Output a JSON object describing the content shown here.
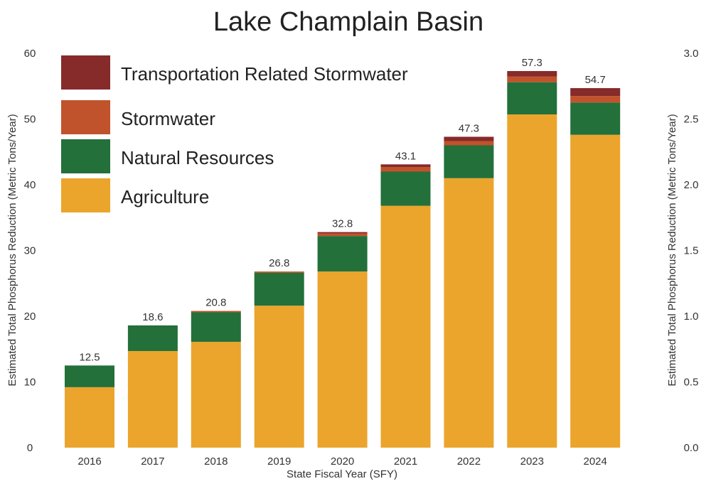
{
  "chart_data": {
    "type": "bar",
    "stacked": true,
    "title": "Lake Champlain Basin",
    "xlabel": "State Fiscal Year (SFY)",
    "ylabel": "Estimated Total Phosphorus Reduction (Metric Tons/Year)",
    "ylabel_right": "Estimated Total Phosphorus Reduction (Metric Tons/Year)",
    "ylim": [
      0,
      60
    ],
    "yticks": [
      0,
      10,
      20,
      30,
      40,
      50,
      60
    ],
    "ylim_right": [
      0,
      3.0
    ],
    "yticks_right": [
      "0.0",
      "0.5",
      "1.0",
      "1.5",
      "2.0",
      "2.5",
      "3.0"
    ],
    "grid": false,
    "legend_position": "top-left",
    "categories": [
      "2016",
      "2017",
      "2018",
      "2019",
      "2020",
      "2021",
      "2022",
      "2023",
      "2024"
    ],
    "totals": [
      "12.5",
      "18.6",
      "20.8",
      "26.8",
      "32.8",
      "43.1",
      "47.3",
      "57.3",
      "54.7"
    ],
    "series": [
      {
        "name": "Agriculture",
        "color": "#EBA52C",
        "values": [
          9.2,
          14.7,
          16.1,
          21.6,
          26.8,
          36.8,
          41.0,
          50.7,
          47.6
        ]
      },
      {
        "name": "Natural Resources",
        "color": "#23703A",
        "values": [
          3.3,
          3.9,
          4.5,
          5.0,
          5.4,
          5.2,
          5.0,
          4.9,
          4.9
        ]
      },
      {
        "name": "Stormwater",
        "color": "#C0532B",
        "values": [
          0.0,
          0.0,
          0.2,
          0.2,
          0.4,
          0.7,
          0.65,
          0.85,
          1.0
        ]
      },
      {
        "name": "Transportation Related Stormwater",
        "color": "#862A2A",
        "values": [
          0.0,
          0.0,
          0.0,
          0.0,
          0.2,
          0.4,
          0.65,
          0.85,
          1.2
        ]
      }
    ],
    "legend_order": [
      "Transportation Related Stormwater",
      "Stormwater",
      "Natural Resources",
      "Agriculture"
    ]
  }
}
